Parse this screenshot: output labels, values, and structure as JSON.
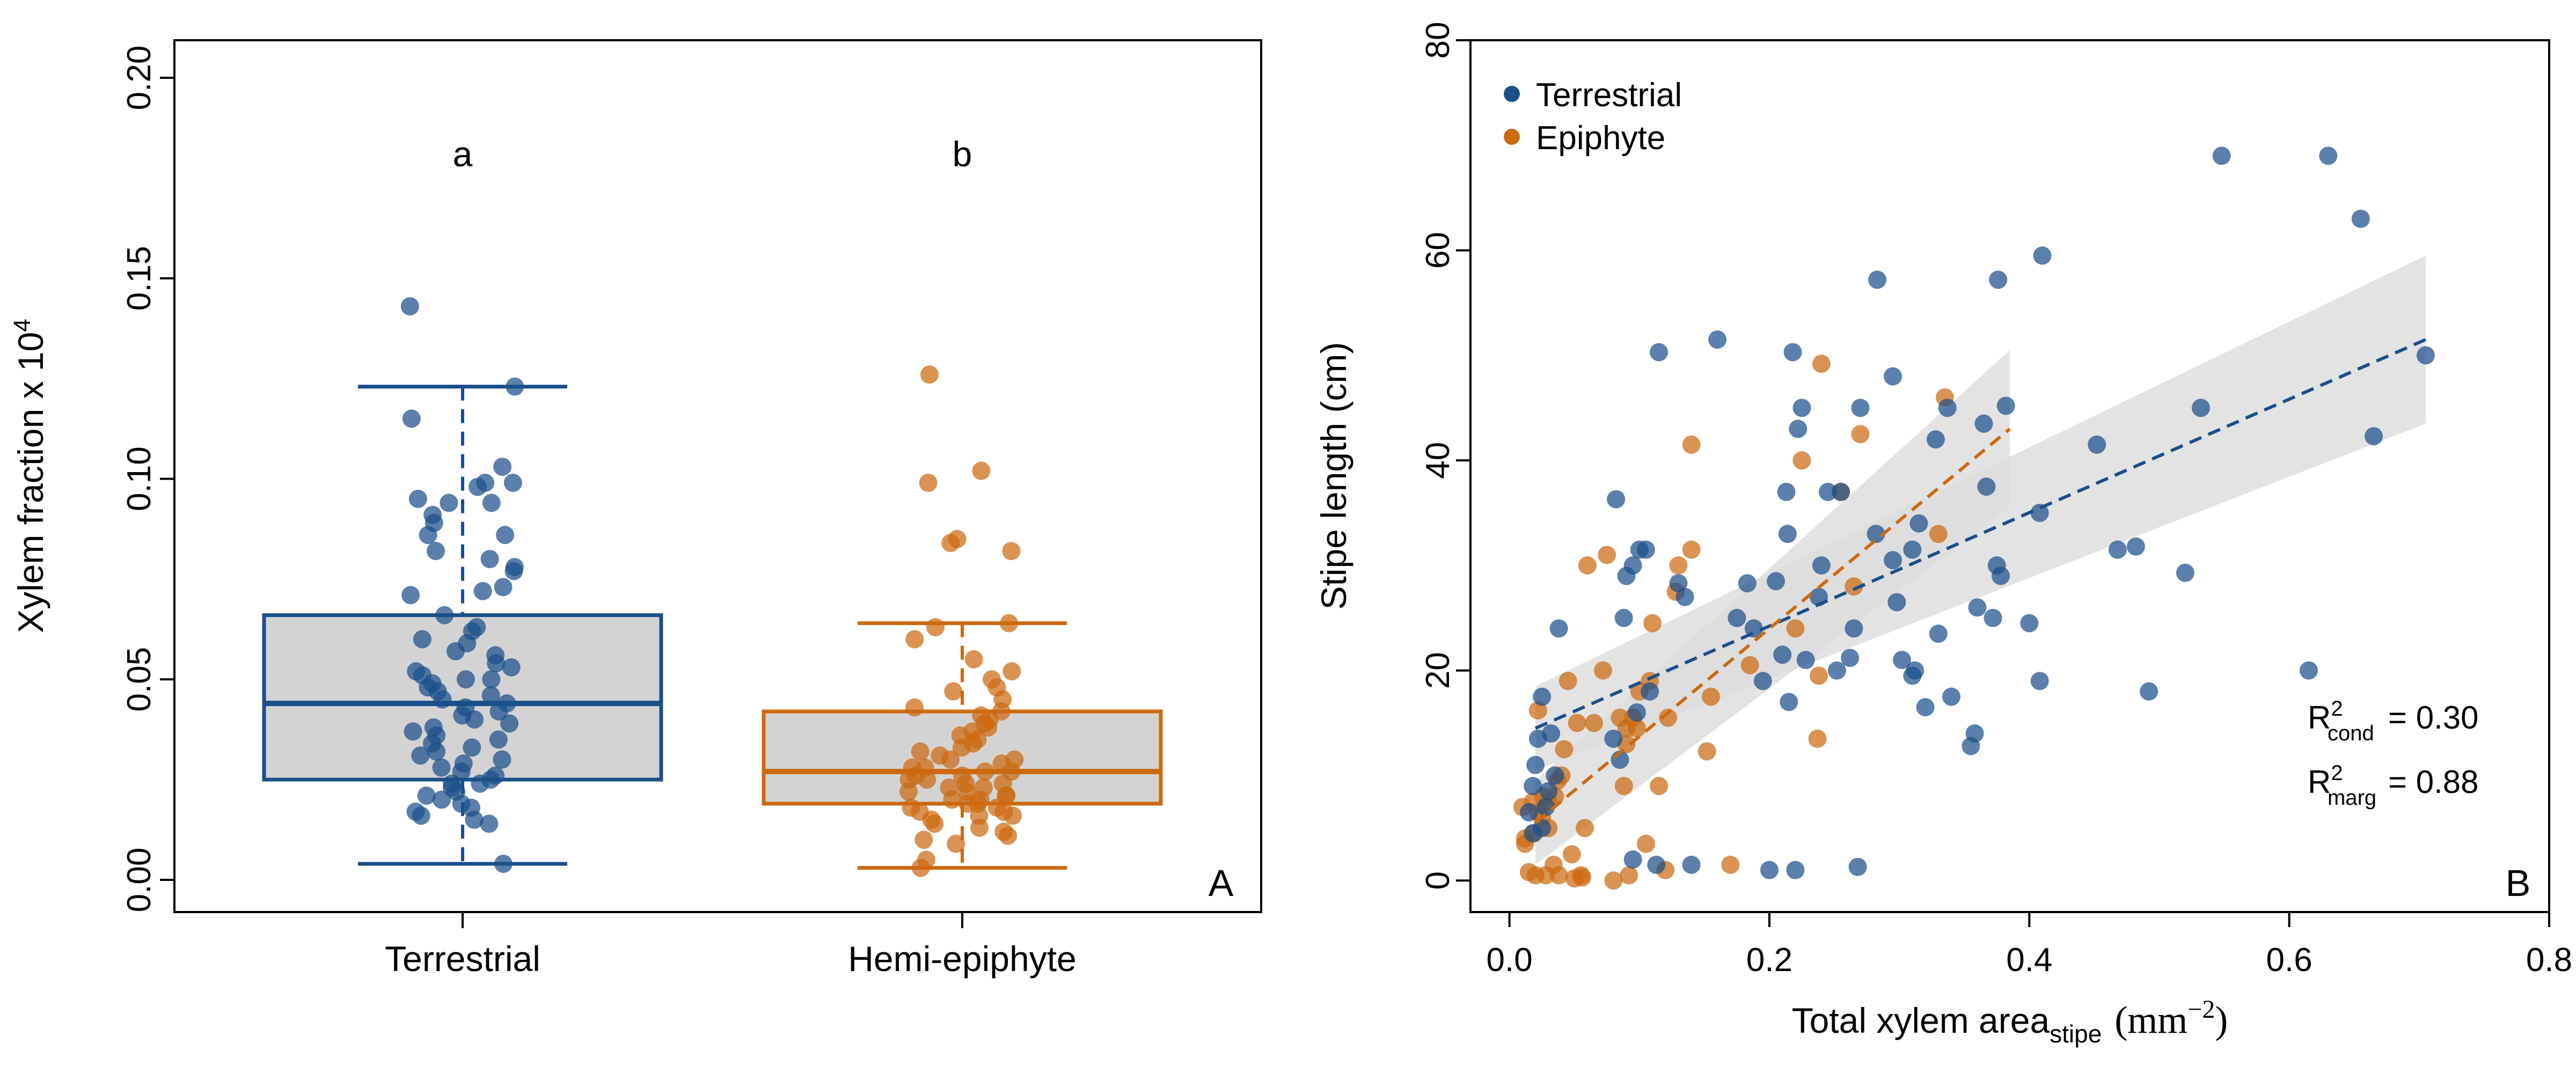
{
  "colors": {
    "terrestrial": "#1b4f8a",
    "epiphyte": "#cc6a10",
    "box_fill": "#d3d3d3",
    "ci_band": "#dcdcdc"
  },
  "chart_data": [
    {
      "type": "box",
      "panel_label": "A",
      "ylabel": "Xylem fraction x 10",
      "ylabel_exp": "4",
      "ylim": [
        0,
        0.2
      ],
      "yticks": [
        "0.00",
        "0.05",
        "0.10",
        "0.15",
        "0.20"
      ],
      "categories": [
        "Terrestrial",
        "Hemi-epiphyte"
      ],
      "grid": false,
      "groups": [
        {
          "category": "Terrestrial",
          "letter": "a",
          "color": "#1b4f8a",
          "whisker_low": 0.004,
          "q1": 0.025,
          "median": 0.044,
          "q3": 0.066,
          "whisker_high": 0.123,
          "points": [
            0.143,
            0.123,
            0.115,
            0.103,
            0.099,
            0.099,
            0.098,
            0.095,
            0.094,
            0.094,
            0.091,
            0.089,
            0.086,
            0.086,
            0.082,
            0.08,
            0.078,
            0.077,
            0.073,
            0.072,
            0.071,
            0.066,
            0.063,
            0.062,
            0.06,
            0.059,
            0.057,
            0.056,
            0.054,
            0.053,
            0.052,
            0.051,
            0.05,
            0.05,
            0.049,
            0.048,
            0.047,
            0.046,
            0.045,
            0.044,
            0.043,
            0.042,
            0.041,
            0.04,
            0.039,
            0.038,
            0.037,
            0.036,
            0.035,
            0.034,
            0.033,
            0.032,
            0.031,
            0.03,
            0.029,
            0.028,
            0.027,
            0.026,
            0.025,
            0.024,
            0.024,
            0.023,
            0.022,
            0.021,
            0.02,
            0.019,
            0.018,
            0.017,
            0.016,
            0.015,
            0.014,
            0.004
          ]
        },
        {
          "category": "Hemi-epiphyte",
          "letter": "b",
          "color": "#cc6a10",
          "whisker_low": 0.003,
          "q1": 0.019,
          "median": 0.027,
          "q3": 0.042,
          "whisker_high": 0.064,
          "points": [
            0.126,
            0.102,
            0.099,
            0.085,
            0.084,
            0.082,
            0.064,
            0.063,
            0.06,
            0.055,
            0.052,
            0.05,
            0.048,
            0.047,
            0.045,
            0.043,
            0.042,
            0.041,
            0.04,
            0.039,
            0.038,
            0.037,
            0.036,
            0.035,
            0.034,
            0.033,
            0.032,
            0.031,
            0.03,
            0.03,
            0.029,
            0.028,
            0.028,
            0.027,
            0.027,
            0.026,
            0.026,
            0.025,
            0.025,
            0.024,
            0.024,
            0.023,
            0.023,
            0.022,
            0.022,
            0.021,
            0.021,
            0.02,
            0.02,
            0.019,
            0.019,
            0.018,
            0.018,
            0.017,
            0.017,
            0.016,
            0.016,
            0.015,
            0.014,
            0.013,
            0.012,
            0.011,
            0.01,
            0.009,
            0.005,
            0.003
          ]
        }
      ]
    },
    {
      "type": "scatter",
      "panel_label": "B",
      "ylabel": "Stipe length  (cm)",
      "xlabel": "Total xylem area",
      "xlabel_sub": "stipe",
      "xlabel_unit": "(mm",
      "xlabel_unit_exp": "−2",
      "xlabel_unit_close": ")",
      "xlim": [
        -0.03,
        0.8
      ],
      "ylim": [
        -3,
        80
      ],
      "xticks": [
        "0.0",
        "0.2",
        "0.4",
        "0.6",
        "0.8"
      ],
      "yticks": [
        "0",
        "20",
        "40",
        "60",
        "80"
      ],
      "grid": false,
      "legend_position": "top-left",
      "series": [
        {
          "name": "Terrestrial",
          "color": "#1b4f8a",
          "fit": {
            "x": [
              0.02,
              0.705
            ],
            "y": [
              14.5,
              51.5
            ],
            "ci_low": [
              10.5,
              43.5
            ],
            "ci_high": [
              18.5,
              59.5
            ]
          },
          "x": [
            0.705,
            0.665,
            0.655,
            0.63,
            0.615,
            0.548,
            0.532,
            0.52,
            0.492,
            0.482,
            0.468,
            0.452,
            0.41,
            0.408,
            0.408,
            0.4,
            0.382,
            0.378,
            0.376,
            0.375,
            0.372,
            0.367,
            0.365,
            0.36,
            0.358,
            0.355,
            0.34,
            0.337,
            0.33,
            0.328,
            0.32,
            0.315,
            0.312,
            0.31,
            0.31,
            0.302,
            0.298,
            0.295,
            0.295,
            0.283,
            0.282,
            0.27,
            0.268,
            0.265,
            0.262,
            0.255,
            0.252,
            0.245,
            0.24,
            0.238,
            0.228,
            0.225,
            0.222,
            0.22,
            0.218,
            0.215,
            0.214,
            0.213,
            0.21,
            0.205,
            0.2,
            0.195,
            0.188,
            0.183,
            0.175,
            0.16,
            0.14,
            0.135,
            0.13,
            0.115,
            0.113,
            0.108,
            0.105,
            0.1,
            0.098,
            0.095,
            0.095,
            0.09,
            0.088,
            0.085,
            0.082,
            0.08,
            0.038,
            0.035,
            0.032,
            0.03,
            0.028,
            0.025,
            0.025,
            0.022,
            0.02,
            0.018,
            0.018,
            0.015
          ],
          "y": [
            50,
            42.3,
            63,
            69,
            20,
            69,
            45,
            29.3,
            18,
            31.8,
            31.5,
            41.5,
            59.5,
            35,
            19,
            24.5,
            45.2,
            29,
            57.2,
            30,
            25,
            37.5,
            43.5,
            26,
            14,
            12.8,
            17.5,
            45,
            23.5,
            42,
            16.5,
            34,
            20,
            31.5,
            19.5,
            21,
            26.5,
            48,
            30.5,
            57.2,
            33,
            45,
            1.3,
            24,
            21.2,
            37,
            20,
            37,
            30,
            27,
            21,
            45,
            43,
            1,
            50.3,
            17,
            33,
            37,
            21.5,
            28.5,
            1,
            19,
            24,
            28.3,
            25,
            51.5,
            1.5,
            27,
            28.3,
            50.3,
            1.5,
            18,
            31.5,
            31.5,
            16,
            30,
            2,
            29,
            25,
            11.5,
            36.3,
            13.5,
            24,
            10,
            14,
            8.5,
            7,
            17.5,
            5,
            13.5,
            11,
            4.5,
            9,
            6.5
          ]
        },
        {
          "name": "Epiphyte",
          "color": "#cc6a10",
          "fit": {
            "x": [
              0.02,
              0.385
            ],
            "y": [
              5.5,
              43
            ],
            "ci_low": [
              1.5,
              35.5
            ],
            "ci_high": [
              9.5,
              50.5
            ]
          },
          "x": [
            0.335,
            0.33,
            0.27,
            0.265,
            0.255,
            0.24,
            0.238,
            0.237,
            0.225,
            0.22,
            0.185,
            0.17,
            0.155,
            0.152,
            0.14,
            0.14,
            0.13,
            0.128,
            0.122,
            0.12,
            0.115,
            0.11,
            0.108,
            0.105,
            0.1,
            0.098,
            0.095,
            0.092,
            0.09,
            0.09,
            0.088,
            0.085,
            0.08,
            0.075,
            0.072,
            0.065,
            0.06,
            0.058,
            0.056,
            0.055,
            0.052,
            0.05,
            0.048,
            0.045,
            0.042,
            0.04,
            0.038,
            0.037,
            0.035,
            0.034,
            0.03,
            0.03,
            0.028,
            0.026,
            0.025,
            0.022,
            0.022,
            0.02,
            0.019,
            0.018,
            0.015,
            0.012,
            0.012,
            0.01
          ],
          "y": [
            46,
            33,
            42.5,
            28,
            37,
            49.2,
            19.5,
            13.5,
            40,
            24,
            20.5,
            1.5,
            17.5,
            12.3,
            41.5,
            31.5,
            30,
            27.5,
            15.5,
            1,
            9,
            24.5,
            19,
            3.5,
            18,
            14.5,
            15.5,
            0.5,
            14.5,
            13,
            9,
            15.5,
            0,
            31,
            20,
            15,
            30,
            5,
            0.3,
            0.5,
            15,
            0.2,
            2.5,
            19,
            12.5,
            10,
            0.5,
            9.5,
            8,
            1.5,
            7.5,
            5,
            0.5,
            8,
            6,
            16.2,
            6.5,
            0.5,
            4.5,
            7.5,
            0.8,
            4,
            3.5,
            7
          ]
        }
      ],
      "annotations": [
        {
          "label": "R",
          "exp": "2",
          "sub": "cond",
          "text": "=  0.30"
        },
        {
          "label": "R",
          "exp": "2",
          "sub": "marg",
          "text": "=  0.88"
        }
      ]
    }
  ]
}
